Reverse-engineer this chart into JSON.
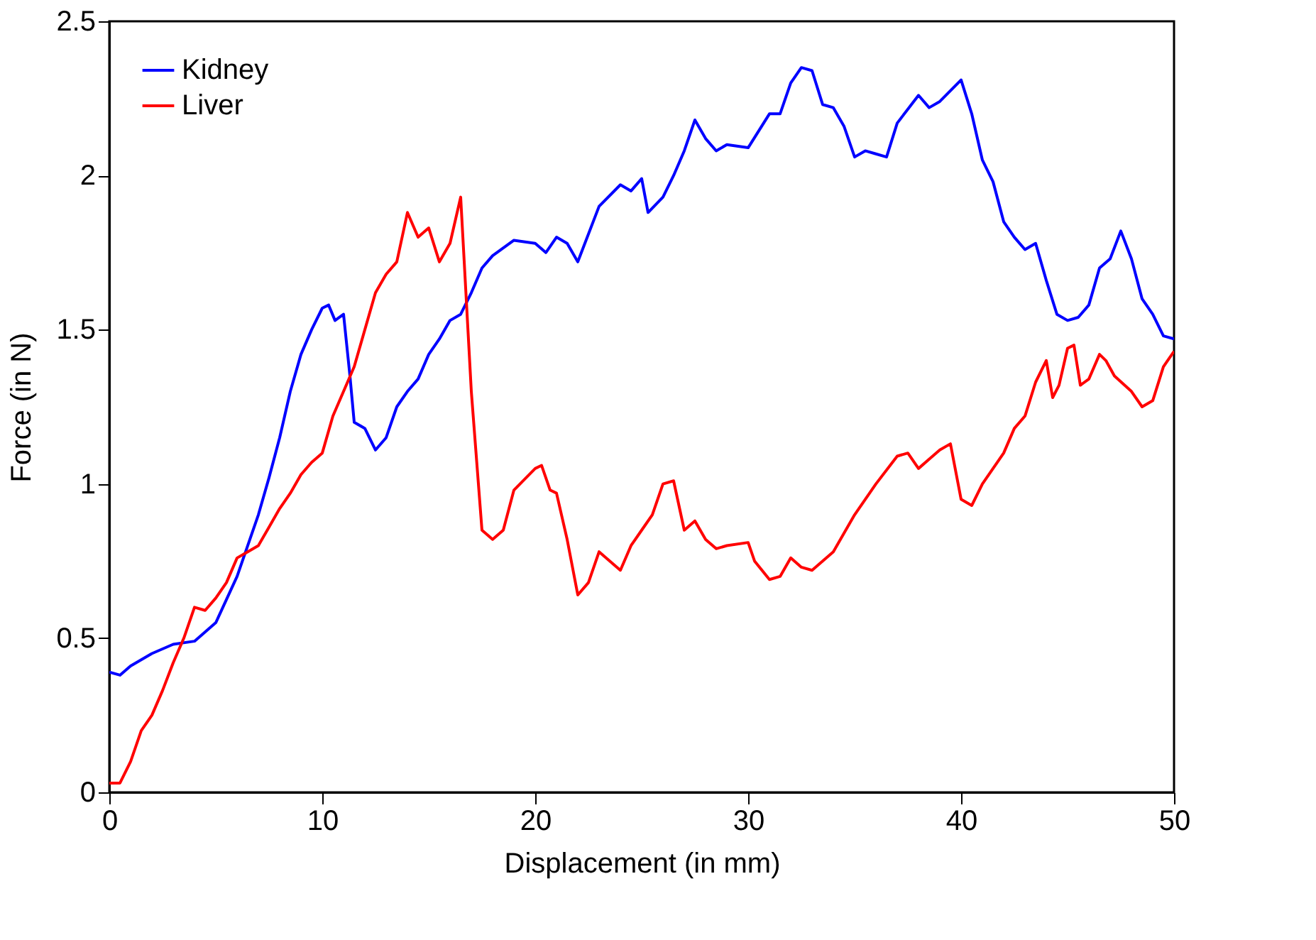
{
  "chart_data": {
    "type": "line",
    "xlabel": "Displacement (in mm)",
    "ylabel": "Force (in N)",
    "xlim": [
      0,
      50
    ],
    "xticks": [
      0,
      10,
      20,
      30,
      40,
      50
    ],
    "ylim": [
      0,
      2.5
    ],
    "yticks": [
      0,
      0.5,
      1,
      1.5,
      2,
      2.5
    ],
    "grid": false,
    "legend": "top left",
    "marker": "none",
    "line_style": "solid",
    "series": [
      {
        "name": "Kidney",
        "color": "#0000ff",
        "x": [
          0,
          0.5,
          1,
          2,
          3,
          4,
          5,
          6,
          7,
          7.5,
          8,
          8.5,
          9,
          9.5,
          10,
          10.3,
          10.6,
          11,
          11.3,
          11.5,
          12,
          12.5,
          13,
          13.5,
          14,
          14.5,
          15,
          15.5,
          16,
          16.5,
          17,
          17.5,
          18,
          19,
          20,
          20.5,
          21,
          21.5,
          22,
          23,
          24,
          24.5,
          25,
          25.3,
          26,
          26.5,
          27,
          27.5,
          28,
          28.5,
          29,
          30,
          31,
          31.5,
          32,
          32.5,
          33,
          33.5,
          34,
          34.5,
          35,
          35.5,
          36,
          36.5,
          37,
          38,
          38.5,
          39,
          40,
          40.5,
          41,
          41.5,
          42,
          42.5,
          43,
          43.5,
          44,
          44.5,
          45,
          45.5,
          46,
          46.5,
          47,
          47.5,
          48,
          48.5,
          49,
          49.5,
          50
        ],
        "values": [
          0.39,
          0.38,
          0.41,
          0.45,
          0.48,
          0.49,
          0.55,
          0.7,
          0.9,
          1.02,
          1.15,
          1.3,
          1.42,
          1.5,
          1.57,
          1.58,
          1.53,
          1.55,
          1.35,
          1.2,
          1.18,
          1.11,
          1.15,
          1.25,
          1.3,
          1.34,
          1.42,
          1.47,
          1.53,
          1.55,
          1.62,
          1.7,
          1.74,
          1.79,
          1.78,
          1.75,
          1.8,
          1.78,
          1.72,
          1.9,
          1.97,
          1.95,
          1.99,
          1.88,
          1.93,
          2.0,
          2.08,
          2.18,
          2.12,
          2.08,
          2.1,
          2.09,
          2.2,
          2.2,
          2.3,
          2.35,
          2.34,
          2.23,
          2.22,
          2.16,
          2.06,
          2.08,
          2.07,
          2.06,
          2.17,
          2.26,
          2.22,
          2.24,
          2.31,
          2.2,
          2.05,
          1.98,
          1.85,
          1.8,
          1.76,
          1.78,
          1.66,
          1.55,
          1.53,
          1.54,
          1.58,
          1.7,
          1.73,
          1.82,
          1.73,
          1.6,
          1.55,
          1.48,
          1.47
        ]
      },
      {
        "name": "Liver",
        "color": "#ff0000",
        "x": [
          0,
          0.5,
          1,
          1.5,
          2,
          2.5,
          3,
          3.5,
          4,
          4.5,
          5,
          5.5,
          6,
          6.5,
          7,
          7.5,
          8,
          8.5,
          9,
          9.5,
          10,
          10.5,
          11,
          11.5,
          12,
          12.5,
          13,
          13.5,
          14,
          14.5,
          15,
          15.5,
          16,
          16.5,
          17,
          17.5,
          18,
          18.5,
          19,
          20,
          20.3,
          20.7,
          21,
          21.5,
          22,
          22.5,
          23,
          23.5,
          24,
          24.5,
          25,
          25.5,
          26,
          26.5,
          27,
          27.5,
          28,
          28.5,
          29,
          30,
          30.3,
          31,
          31.5,
          32,
          32.5,
          33,
          34,
          35,
          36,
          37,
          37.5,
          38,
          38.5,
          39,
          39.5,
          40,
          40.5,
          41,
          42,
          42.5,
          43,
          43.5,
          44,
          44.3,
          44.6,
          45,
          45.3,
          45.6,
          46,
          46.5,
          46.8,
          47.2,
          48,
          48.5,
          49,
          49.5,
          50
        ],
        "values": [
          0.03,
          0.03,
          0.1,
          0.2,
          0.25,
          0.33,
          0.42,
          0.5,
          0.6,
          0.59,
          0.63,
          0.68,
          0.76,
          0.78,
          0.8,
          0.86,
          0.92,
          0.97,
          1.03,
          1.07,
          1.1,
          1.22,
          1.3,
          1.38,
          1.5,
          1.62,
          1.68,
          1.72,
          1.88,
          1.8,
          1.83,
          1.72,
          1.78,
          1.93,
          1.3,
          0.85,
          0.82,
          0.85,
          0.98,
          1.05,
          1.06,
          0.98,
          0.97,
          0.82,
          0.64,
          0.68,
          0.78,
          0.75,
          0.72,
          0.8,
          0.85,
          0.9,
          1.0,
          1.01,
          0.85,
          0.88,
          0.82,
          0.79,
          0.8,
          0.81,
          0.75,
          0.69,
          0.7,
          0.76,
          0.73,
          0.72,
          0.78,
          0.9,
          1.0,
          1.09,
          1.1,
          1.05,
          1.08,
          1.11,
          1.13,
          0.95,
          0.93,
          1.0,
          1.1,
          1.18,
          1.22,
          1.33,
          1.4,
          1.28,
          1.32,
          1.44,
          1.45,
          1.32,
          1.34,
          1.42,
          1.4,
          1.35,
          1.3,
          1.25,
          1.27,
          1.38,
          1.43
        ]
      }
    ]
  }
}
